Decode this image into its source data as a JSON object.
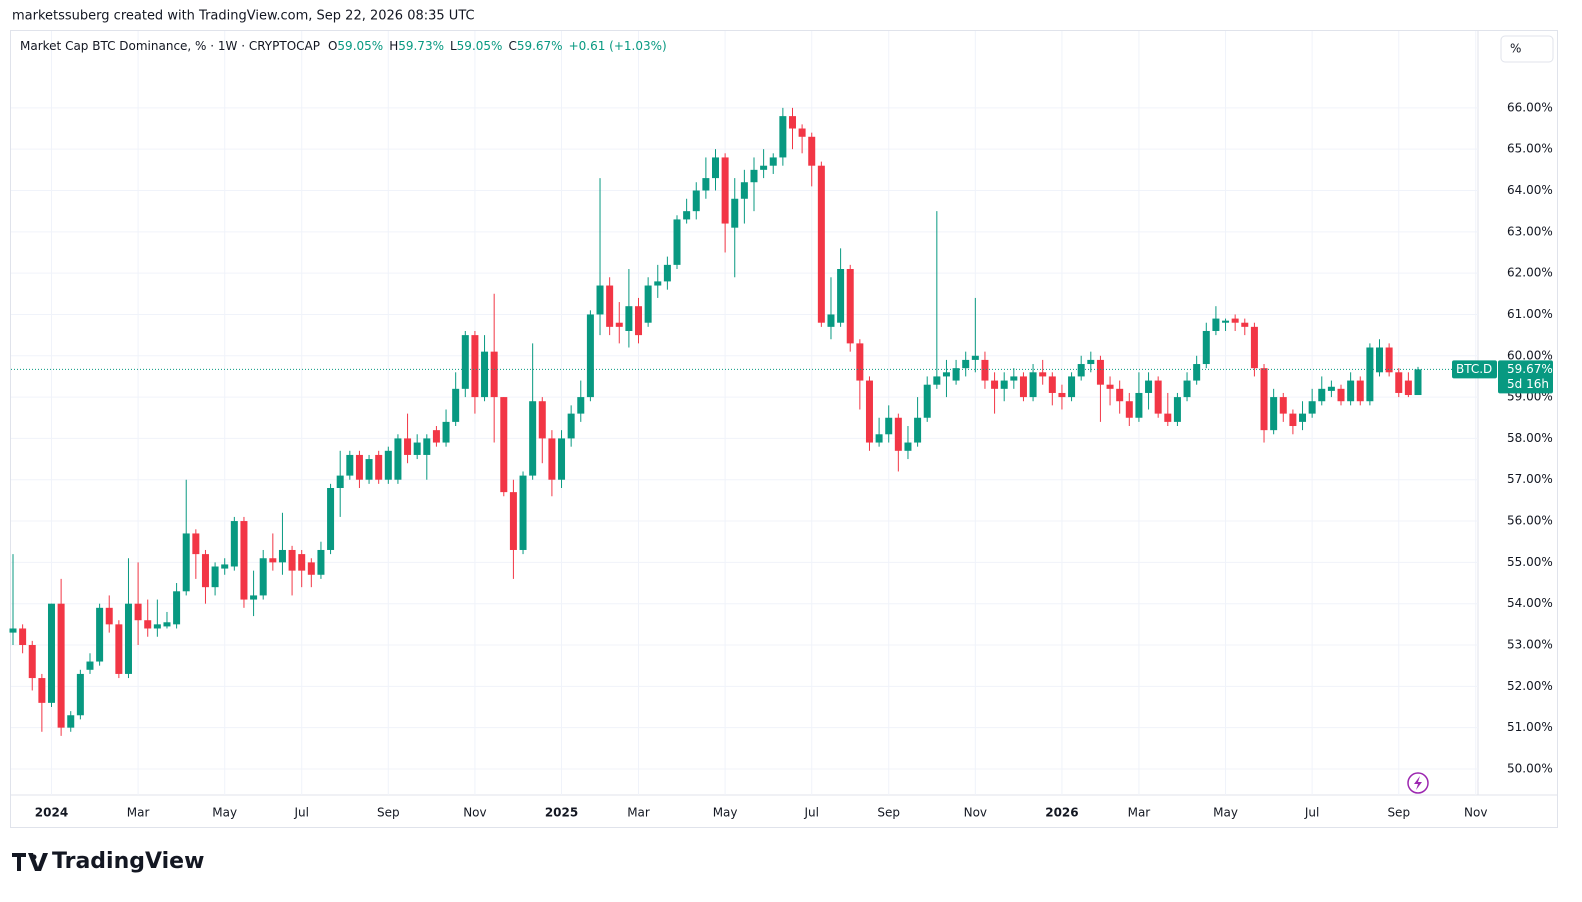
{
  "header": {
    "credit": "marketssuberg created with TradingView.com, Sep 22, 2026 08:35 UTC",
    "brand": "TradingView"
  },
  "chart_data": {
    "type": "candlestick",
    "title": "Market Cap BTC Dominance, % · 1W · CRYPTOCAP",
    "ohlc_legend": [
      {
        "key": "O",
        "value": "59.05%"
      },
      {
        "key": "H",
        "value": "59.73%"
      },
      {
        "key": "L",
        "value": "59.05%"
      },
      {
        "key": "C",
        "value": "59.67%"
      }
    ],
    "change": "+0.61 (+1.03%)",
    "scale_button": "%",
    "symbol": "BTC.D",
    "last_label": "59.67%",
    "countdown": "5d 16h",
    "last_value": 59.67,
    "up_color": "#089981",
    "down_color": "#f23645",
    "grid": true,
    "categories": [
      null,
      null,
      null,
      null,
      "2024",
      null,
      null,
      null,
      null,
      null,
      null,
      null,
      null,
      "Mar",
      null,
      null,
      null,
      null,
      null,
      null,
      null,
      null,
      "May",
      null,
      null,
      null,
      null,
      null,
      null,
      null,
      "Jul",
      null,
      null,
      null,
      null,
      null,
      null,
      null,
      null,
      "Sep",
      null,
      null,
      null,
      null,
      null,
      null,
      null,
      null,
      "Nov",
      null,
      null,
      null,
      null,
      null,
      null,
      null,
      null,
      "2025",
      null,
      null,
      null,
      null,
      null,
      null,
      null,
      "Mar",
      null,
      null,
      null,
      null,
      null,
      null,
      null,
      null,
      "May",
      null,
      null,
      null,
      null,
      null,
      null,
      null,
      null,
      "Jul",
      null,
      null,
      null,
      null,
      null,
      null,
      null,
      "Sep",
      null,
      null,
      null,
      null,
      null,
      null,
      null,
      null,
      "Nov",
      null,
      null,
      null,
      null,
      null,
      null,
      null,
      null,
      "2026",
      null,
      null,
      null,
      null,
      null,
      null,
      null,
      "Mar",
      null,
      null,
      null,
      null,
      null,
      null,
      null,
      null,
      "May",
      null,
      null,
      null,
      null,
      null,
      null,
      null,
      null,
      "Jul",
      null,
      null,
      null,
      null,
      null,
      null,
      null,
      null,
      "Sep",
      null,
      null,
      null,
      null,
      null,
      null,
      null,
      "Nov"
    ],
    "open": [
      53.3,
      53.4,
      53.0,
      52.2,
      51.6,
      54.0,
      51.0,
      51.3,
      52.4,
      52.6,
      53.9,
      53.5,
      52.3,
      54.0,
      53.6,
      53.4,
      53.45,
      53.5,
      54.3,
      55.7,
      55.2,
      54.4,
      54.85,
      54.9,
      56.0,
      54.1,
      54.2,
      55.1,
      55.0,
      55.3,
      55.2,
      55.0,
      54.7,
      55.3,
      56.8,
      57.1,
      57.6,
      57.0,
      57.6,
      57.0,
      57.0,
      58.0,
      57.6,
      57.6,
      58.2,
      57.9,
      58.4,
      59.2,
      60.5,
      59.0,
      60.1,
      59.0,
      56.7,
      55.3,
      57.1,
      58.9,
      58.0,
      57.0,
      58.0,
      58.6,
      59.0,
      61.0,
      61.7,
      60.8,
      60.6,
      61.2,
      60.8,
      61.7,
      61.8,
      62.2,
      63.3,
      63.5,
      64.0,
      64.3,
      64.8,
      63.1,
      63.8,
      64.2,
      64.5,
      64.6,
      64.8,
      65.8,
      65.5,
      65.3,
      64.6,
      60.7,
      60.8,
      62.1,
      60.3,
      59.4,
      57.9,
      58.1,
      58.5,
      57.7,
      57.9,
      58.5,
      59.3,
      59.5,
      59.4,
      59.7,
      59.9,
      59.9,
      59.4,
      59.2,
      59.4,
      59.5,
      59.0,
      59.6,
      59.5,
      59.1,
      59.0,
      59.5,
      59.8,
      59.9,
      59.3,
      59.2,
      58.9,
      58.5,
      59.1,
      59.4,
      58.6,
      58.4,
      59.0,
      59.4,
      59.8,
      60.6,
      60.8,
      60.9,
      60.8,
      60.7,
      59.7,
      58.2,
      59.0,
      58.6,
      58.4,
      58.6,
      58.9,
      59.15,
      59.2,
      58.9,
      59.4,
      58.9,
      59.6,
      60.2,
      59.6,
      59.4,
      59.05,
      null,
      null,
      null,
      null,
      null,
      null
    ],
    "high": [
      55.2,
      53.5,
      53.1,
      52.3,
      54.0,
      54.6,
      51.4,
      52.4,
      52.8,
      54.0,
      54.2,
      53.6,
      55.1,
      55.0,
      54.1,
      54.1,
      53.8,
      54.5,
      57.0,
      55.8,
      55.3,
      55.0,
      55.1,
      56.1,
      56.1,
      54.8,
      55.3,
      55.7,
      56.2,
      55.4,
      55.3,
      55.1,
      55.5,
      56.9,
      57.7,
      57.7,
      57.7,
      57.6,
      57.7,
      57.8,
      58.1,
      58.6,
      58.1,
      58.1,
      58.3,
      58.7,
      59.6,
      60.6,
      60.6,
      60.5,
      61.5,
      59.0,
      57.0,
      57.2,
      60.3,
      59.0,
      58.2,
      58.2,
      58.8,
      59.4,
      61.1,
      64.3,
      61.9,
      61.3,
      62.1,
      61.4,
      61.9,
      62.2,
      62.4,
      63.4,
      63.8,
      64.2,
      64.8,
      65.0,
      64.9,
      64.3,
      64.5,
      64.8,
      65.0,
      64.9,
      66.0,
      66.0,
      65.6,
      65.4,
      64.7,
      61.9,
      62.6,
      62.2,
      60.4,
      59.5,
      58.5,
      58.8,
      58.6,
      58.3,
      59.0,
      59.5,
      63.5,
      59.9,
      59.9,
      60.1,
      61.4,
      60.1,
      59.6,
      59.6,
      59.7,
      59.6,
      59.8,
      59.9,
      59.6,
      59.3,
      59.6,
      60.0,
      60.1,
      60.0,
      59.5,
      59.4,
      59.1,
      59.6,
      59.6,
      59.5,
      59.1,
      59.1,
      59.6,
      60.0,
      60.8,
      61.2,
      60.9,
      61.0,
      60.9,
      60.8,
      59.8,
      59.2,
      59.1,
      58.7,
      58.9,
      59.2,
      59.5,
      59.4,
      59.3,
      59.6,
      59.5,
      60.3,
      60.4,
      60.3,
      59.7,
      59.6,
      59.73,
      null,
      null,
      null,
      null,
      null,
      null
    ],
    "low": [
      53.0,
      52.8,
      51.9,
      50.9,
      51.5,
      50.8,
      50.9,
      51.2,
      52.3,
      52.5,
      53.3,
      52.2,
      52.2,
      53.0,
      53.2,
      53.2,
      53.4,
      53.4,
      54.2,
      54.6,
      54.0,
      54.2,
      54.7,
      54.8,
      53.9,
      53.7,
      54.1,
      54.8,
      54.7,
      54.2,
      54.4,
      54.4,
      54.6,
      55.2,
      56.1,
      57.0,
      56.8,
      56.9,
      56.9,
      56.9,
      56.9,
      57.4,
      57.5,
      57.0,
      57.8,
      57.8,
      58.3,
      59.0,
      58.6,
      58.9,
      57.9,
      56.6,
      54.6,
      55.2,
      57.0,
      57.4,
      56.6,
      56.8,
      57.8,
      58.4,
      58.9,
      60.5,
      60.5,
      60.3,
      60.2,
      60.3,
      60.7,
      61.4,
      61.6,
      62.1,
      63.2,
      63.3,
      63.8,
      64.0,
      62.5,
      61.9,
      63.2,
      63.5,
      64.3,
      64.4,
      64.6,
      65.0,
      64.9,
      64.1,
      60.7,
      60.4,
      60.7,
      60.1,
      58.7,
      57.7,
      57.8,
      57.9,
      57.2,
      57.5,
      57.8,
      58.4,
      59.2,
      59.0,
      59.3,
      59.5,
      59.6,
      59.2,
      58.6,
      58.9,
      59.2,
      58.9,
      58.9,
      59.3,
      58.8,
      58.7,
      58.9,
      59.4,
      59.6,
      58.4,
      58.8,
      58.6,
      58.3,
      58.4,
      58.7,
      58.5,
      58.3,
      58.3,
      58.9,
      59.3,
      59.7,
      60.5,
      60.6,
      60.6,
      60.5,
      59.5,
      57.9,
      58.1,
      58.4,
      58.1,
      58.2,
      58.5,
      58.8,
      59.0,
      58.8,
      58.8,
      58.8,
      58.8,
      59.5,
      59.5,
      59.0,
      59.0,
      59.05,
      null,
      null,
      null,
      null,
      null,
      null
    ],
    "close": [
      53.4,
      53.0,
      52.2,
      51.6,
      54.0,
      51.0,
      51.3,
      52.3,
      52.6,
      53.9,
      53.5,
      52.3,
      54.0,
      53.6,
      53.4,
      53.5,
      53.55,
      54.3,
      55.7,
      55.2,
      54.4,
      54.9,
      54.95,
      56.0,
      54.1,
      54.2,
      55.1,
      55.0,
      55.3,
      54.8,
      54.8,
      54.7,
      55.3,
      56.8,
      57.1,
      57.6,
      57.0,
      57.5,
      57.0,
      57.7,
      58.0,
      57.6,
      57.9,
      58.0,
      57.9,
      58.4,
      59.2,
      60.5,
      59.0,
      60.1,
      59.0,
      56.7,
      55.3,
      57.1,
      58.9,
      58.0,
      57.0,
      58.0,
      58.6,
      59.0,
      61.0,
      61.7,
      60.7,
      60.7,
      61.2,
      60.5,
      61.7,
      61.8,
      62.2,
      63.3,
      63.5,
      64.0,
      64.3,
      64.8,
      63.2,
      63.8,
      64.2,
      64.5,
      64.6,
      64.8,
      65.8,
      65.5,
      65.3,
      64.6,
      60.8,
      61.0,
      62.1,
      60.3,
      59.4,
      57.9,
      58.1,
      58.5,
      57.7,
      57.9,
      58.5,
      59.3,
      59.5,
      59.6,
      59.7,
      59.9,
      60.0,
      59.4,
      59.2,
      59.4,
      59.5,
      59.0,
      59.6,
      59.5,
      59.1,
      59.0,
      59.5,
      59.8,
      59.9,
      59.3,
      59.2,
      58.9,
      58.5,
      59.1,
      59.4,
      58.6,
      58.4,
      59.0,
      59.4,
      59.8,
      60.6,
      60.9,
      60.85,
      60.8,
      60.7,
      59.7,
      58.2,
      59.0,
      58.6,
      58.3,
      58.6,
      58.9,
      59.2,
      59.25,
      58.9,
      59.4,
      58.9,
      60.2,
      60.2,
      59.6,
      59.1,
      59.05,
      59.67,
      null,
      null,
      null,
      null,
      null,
      null
    ],
    "ylim": [
      49.37,
      67.86
    ],
    "yticks": [
      {
        "value": 50,
        "label": "50.00%"
      },
      {
        "value": 51,
        "label": "51.00%"
      },
      {
        "value": 52,
        "label": "52.00%"
      },
      {
        "value": 53,
        "label": "53.00%"
      },
      {
        "value": 54,
        "label": "54.00%"
      },
      {
        "value": 55,
        "label": "55.00%"
      },
      {
        "value": 56,
        "label": "56.00%"
      },
      {
        "value": 57,
        "label": "57.00%"
      },
      {
        "value": 58,
        "label": "58.00%"
      },
      {
        "value": 59,
        "label": "59.00%"
      },
      {
        "value": 60,
        "label": "60.00%"
      },
      {
        "value": 61,
        "label": "61.00%"
      },
      {
        "value": 62,
        "label": "62.00%"
      },
      {
        "value": 63,
        "label": "63.00%"
      },
      {
        "value": 64,
        "label": "64.00%"
      },
      {
        "value": 65,
        "label": "65.00%"
      },
      {
        "value": 66,
        "label": "66.00%"
      }
    ]
  }
}
